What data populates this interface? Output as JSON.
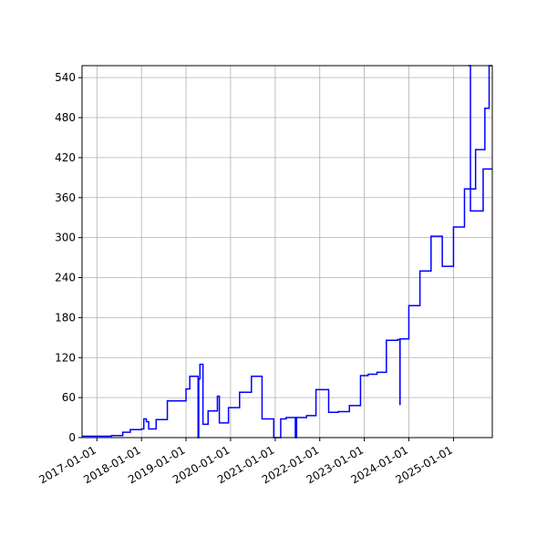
{
  "chart_data": {
    "type": "line",
    "title": "",
    "xlabel": "",
    "ylabel": "",
    "x_axis": "date",
    "xlim": [
      "2016-09-01",
      "2025-11-15"
    ],
    "ylim": [
      0,
      558
    ],
    "xticks": [
      "2017-01-01",
      "2018-01-01",
      "2019-01-01",
      "2020-01-01",
      "2021-01-01",
      "2022-01-01",
      "2023-01-01",
      "2024-01-01",
      "2025-01-01"
    ],
    "yticks": [
      0,
      60,
      120,
      180,
      240,
      300,
      360,
      420,
      480,
      540
    ],
    "grid": true,
    "legend": "none",
    "colors": {
      "line": "#0000ff",
      "grid": "#b0b0b0",
      "axes": "#000000"
    },
    "series": [
      {
        "step": "post",
        "points": [
          [
            "2016-09-01",
            2
          ],
          [
            "2017-05-01",
            3
          ],
          [
            "2017-08-01",
            8
          ],
          [
            "2017-10-01",
            12
          ],
          [
            "2018-01-01",
            13
          ],
          [
            "2018-01-20",
            28
          ],
          [
            "2018-02-10",
            24
          ],
          [
            "2018-03-01",
            13
          ],
          [
            "2018-05-01",
            27
          ],
          [
            "2018-08-01",
            55
          ],
          [
            "2019-01-01",
            73
          ],
          [
            "2019-02-01",
            92
          ],
          [
            "2019-04-10",
            0
          ],
          [
            "2019-04-15",
            88
          ],
          [
            "2019-04-25",
            110
          ],
          [
            "2019-05-20",
            20
          ],
          [
            "2019-07-01",
            40
          ],
          [
            "2019-09-15",
            62
          ],
          [
            "2019-10-01",
            22
          ],
          [
            "2019-12-15",
            45
          ],
          [
            "2020-03-15",
            68
          ],
          [
            "2020-06-20",
            92
          ],
          [
            "2020-09-15",
            28
          ],
          [
            "2020-12-20",
            0
          ],
          [
            "2021-02-15",
            28
          ],
          [
            "2021-04-01",
            30
          ],
          [
            "2021-06-15",
            0
          ],
          [
            "2021-06-25",
            30
          ],
          [
            "2021-09-15",
            33
          ],
          [
            "2021-12-01",
            72
          ],
          [
            "2022-03-15",
            38
          ],
          [
            "2022-06-01",
            39
          ],
          [
            "2022-09-01",
            48
          ],
          [
            "2022-12-01",
            93
          ],
          [
            "2023-02-01",
            95
          ],
          [
            "2023-04-15",
            98
          ],
          [
            "2023-07-01",
            146
          ],
          [
            "2023-10-01",
            147
          ],
          [
            "2023-10-20",
            50
          ],
          [
            "2023-10-21",
            148
          ],
          [
            "2024-01-01",
            198
          ],
          [
            "2024-04-01",
            250
          ],
          [
            "2024-07-01",
            302
          ],
          [
            "2024-10-01",
            257
          ],
          [
            "2025-01-01",
            316
          ],
          [
            "2025-04-01",
            373
          ],
          [
            "2025-07-01",
            432
          ],
          [
            "2025-09-15",
            494
          ],
          [
            "2025-10-20",
            558
          ],
          [
            "2025-11-15",
            558
          ]
        ]
      },
      {
        "step": "post",
        "points": [
          [
            "2025-05-01",
            558
          ],
          [
            "2025-05-20",
            340
          ],
          [
            "2025-09-01",
            403
          ],
          [
            "2025-11-15",
            403
          ]
        ]
      }
    ]
  }
}
